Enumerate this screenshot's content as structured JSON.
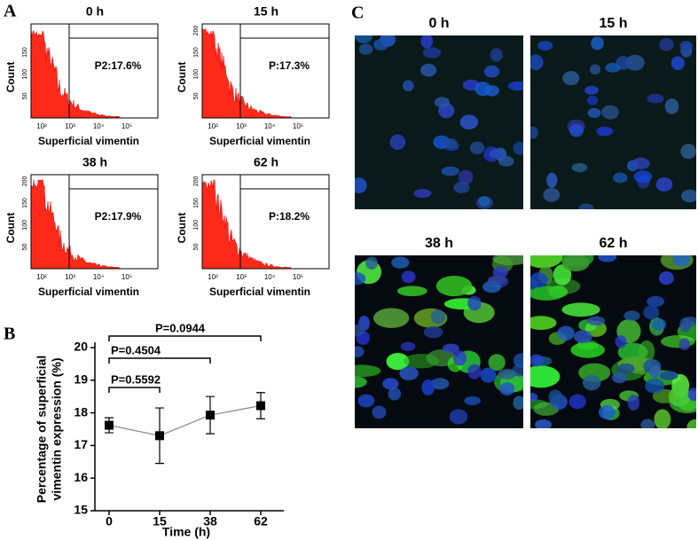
{
  "panel_labels": [
    "A",
    "B",
    "C"
  ],
  "panel_a": {
    "plots": [
      {
        "title": "0 h",
        "gate_label": "P2:17.6%",
        "x_label": "Superficial vimentin",
        "y_label": "Count",
        "y_ticks": [
          50,
          100,
          150
        ],
        "x_ticks": [
          "10²",
          "10³",
          "10⁴",
          "10⁵"
        ]
      },
      {
        "title": "15 h",
        "gate_label": "P:17.3%",
        "x_label": "Superficial vimentin",
        "y_label": "Count",
        "y_ticks": [
          50,
          100,
          150,
          200
        ],
        "x_ticks": [
          "10²",
          "10³",
          "10⁴",
          "10⁵"
        ]
      },
      {
        "title": "38 h",
        "gate_label": "P2:17.9%",
        "x_label": "Superficial vimentin",
        "y_label": "Count",
        "y_ticks": [
          50,
          100,
          150,
          200
        ],
        "x_ticks": [
          "10²",
          "10³",
          "10⁴",
          "10⁵"
        ]
      },
      {
        "title": "62 h",
        "gate_label": "P:18.2%",
        "x_label": "Superficial vimentin",
        "y_label": "Count",
        "y_ticks": [
          50,
          100,
          150,
          200
        ],
        "x_ticks": [
          "10²",
          "10³",
          "10⁴",
          "10⁵"
        ]
      }
    ]
  },
  "chart_data": {
    "type": "line",
    "y_label": [
      "Percentage of superficial",
      "vimentin expression (%)"
    ],
    "x_label": "Time (h)",
    "categories": [
      "0",
      "15",
      "38",
      "62"
    ],
    "series": [
      {
        "name": "Superficial vimentin",
        "color": "#000000",
        "values": [
          17.62,
          17.3,
          17.93,
          18.22
        ],
        "errors": [
          0.23,
          0.85,
          0.57,
          0.4
        ]
      }
    ],
    "ylim": [
      15,
      20
    ],
    "yticks": [
      15,
      16,
      17,
      18,
      19,
      20
    ],
    "annotations": [
      "P=0.5592",
      "P=0.4504",
      "P=0.0944"
    ]
  },
  "panel_c": {
    "titles": [
      "0 h",
      "15 h",
      "38 h",
      "62 h"
    ]
  }
}
